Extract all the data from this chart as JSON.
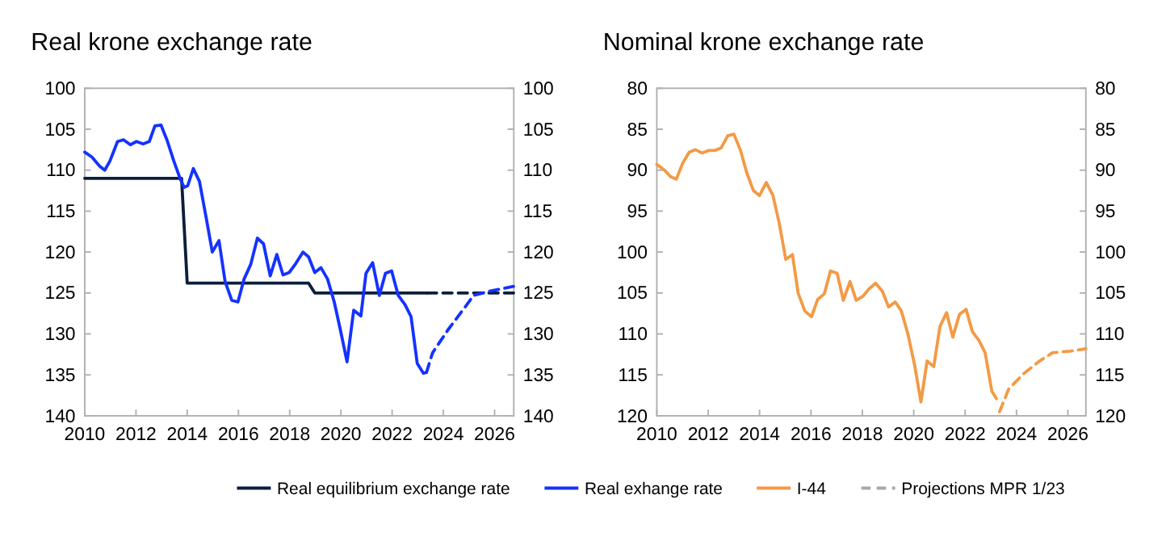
{
  "chart_data": [
    {
      "type": "line",
      "title": "Real krone exchange rate",
      "xlim": [
        2010,
        2026.75
      ],
      "xticks": [
        2010,
        2012,
        2014,
        2016,
        2018,
        2020,
        2022,
        2024,
        2026
      ],
      "ylim": [
        140,
        100
      ],
      "yticks": [
        100,
        105,
        110,
        115,
        120,
        125,
        130,
        135,
        140
      ],
      "y2lim": [
        140,
        100
      ],
      "y2ticks": [
        100,
        105,
        110,
        115,
        120,
        125,
        130,
        135,
        140
      ],
      "legend": "bottom",
      "series": [
        {
          "name": "Real equilibrium exchange rate",
          "color": "#0a1f3c",
          "line_style": "solid",
          "x": [
            2010,
            2013.78,
            2014.0,
            2018.74,
            2018.98,
            2023.38
          ],
          "values": [
            111,
            111,
            123.8,
            123.8,
            125,
            125
          ]
        },
        {
          "color": "#0a1f3c",
          "line_style": "dashed",
          "x": [
            2023.38,
            2026.75
          ],
          "values": [
            125,
            125
          ]
        },
        {
          "name": "Real exhange rate",
          "color": "#1432ff",
          "line_style": "solid",
          "x": [
            2010,
            2010.28,
            2010.58,
            2010.78,
            2010.98,
            2011.28,
            2011.52,
            2011.78,
            2012.02,
            2012.28,
            2012.52,
            2012.74,
            2012.98,
            2013.22,
            2013.48,
            2013.72,
            2013.88,
            2014.02,
            2014.24,
            2014.48,
            2014.74,
            2014.98,
            2015.24,
            2015.48,
            2015.74,
            2015.98,
            2016.22,
            2016.48,
            2016.74,
            2016.98,
            2017.24,
            2017.5,
            2017.74,
            2017.98,
            2018.24,
            2018.52,
            2018.74,
            2018.98,
            2019.22,
            2019.48,
            2019.74,
            2019.98,
            2020.24,
            2020.5,
            2020.78,
            2020.98,
            2021.24,
            2021.5,
            2021.74,
            2021.98,
            2022.24,
            2022.5,
            2022.74,
            2022.98,
            2023.22,
            2023.34
          ],
          "values": [
            107.8,
            108.4,
            109.5,
            110,
            108.9,
            106.5,
            106.3,
            106.9,
            106.5,
            106.8,
            106.5,
            104.6,
            104.5,
            106.4,
            108.9,
            111,
            112.1,
            111.9,
            109.8,
            111.4,
            115.8,
            120,
            118.6,
            123.6,
            125.9,
            126.1,
            123.3,
            121.5,
            118.3,
            119,
            122.9,
            120.3,
            122.8,
            122.5,
            121.4,
            120,
            120.6,
            122.5,
            121.9,
            123.3,
            126.1,
            129.5,
            133.4,
            127.1,
            127.8,
            122.6,
            121.3,
            125.3,
            122.6,
            122.3,
            125.3,
            126.4,
            127.9,
            133.6,
            134.8,
            134.7
          ]
        },
        {
          "color": "#1432ff",
          "line_style": "dashed",
          "x": [
            2023.34,
            2023.58,
            2024.18,
            2024.78,
            2025.18,
            2025.78,
            2026.74
          ],
          "values": [
            134.7,
            132.3,
            129.5,
            127,
            125.3,
            124.8,
            124.2
          ]
        }
      ]
    },
    {
      "type": "line",
      "title": "Nominal krone exchange rate",
      "xlim": [
        2010,
        2026.7
      ],
      "xticks": [
        2010,
        2012,
        2014,
        2016,
        2018,
        2020,
        2022,
        2024,
        2026
      ],
      "ylim": [
        120,
        80
      ],
      "yticks": [
        80,
        85,
        90,
        95,
        100,
        105,
        110,
        115,
        120
      ],
      "y2lim": [
        120,
        80
      ],
      "y2ticks": [
        80,
        85,
        90,
        95,
        100,
        105,
        110,
        115,
        120
      ],
      "legend": "bottom",
      "series": [
        {
          "name": "I-44",
          "color": "#f39a45",
          "line_style": "solid",
          "x": [
            2010,
            2010.3,
            2010.54,
            2010.76,
            2011,
            2011.26,
            2011.5,
            2011.76,
            2012.02,
            2012.26,
            2012.5,
            2012.76,
            2013,
            2013.26,
            2013.5,
            2013.76,
            2014,
            2014.26,
            2014.52,
            2014.76,
            2015.02,
            2015.28,
            2015.5,
            2015.76,
            2016.02,
            2016.26,
            2016.52,
            2016.76,
            2017.02,
            2017.26,
            2017.52,
            2017.76,
            2018.02,
            2018.26,
            2018.52,
            2018.78,
            2019.02,
            2019.28,
            2019.52,
            2019.78,
            2020.04,
            2020.28,
            2020.52,
            2020.78,
            2021.02,
            2021.28,
            2021.52,
            2021.78,
            2022.04,
            2022.28,
            2022.54,
            2022.78,
            2023.04,
            2023.22
          ],
          "values": [
            89.3,
            90,
            90.8,
            91.1,
            89.2,
            87.8,
            87.5,
            87.9,
            87.6,
            87.6,
            87.3,
            85.8,
            85.6,
            87.6,
            90.3,
            92.5,
            93.1,
            91.5,
            93.1,
            96.4,
            100.9,
            100.3,
            105,
            107.2,
            107.9,
            105.8,
            105.1,
            102.3,
            102.6,
            105.9,
            103.6,
            105.9,
            105.4,
            104.5,
            103.8,
            104.8,
            106.7,
            106.1,
            107.2,
            110.1,
            113.9,
            118.3,
            113.3,
            114,
            109.1,
            107.4,
            110.4,
            107.6,
            107,
            109.7,
            110.8,
            112.3,
            117,
            117.9
          ]
        },
        {
          "color": "#f39a45",
          "line_style": "dashed",
          "x": [
            2023.34,
            2023.7,
            2024.3,
            2024.9,
            2025.4,
            2026.1,
            2026.7
          ],
          "values": [
            119.5,
            116.7,
            114.8,
            113.3,
            112.3,
            112.1,
            111.8
          ]
        },
        {
          "name": "Projections MPR 1/23",
          "color": "#a8a8a8",
          "line_style": "dashed"
        }
      ]
    }
  ]
}
